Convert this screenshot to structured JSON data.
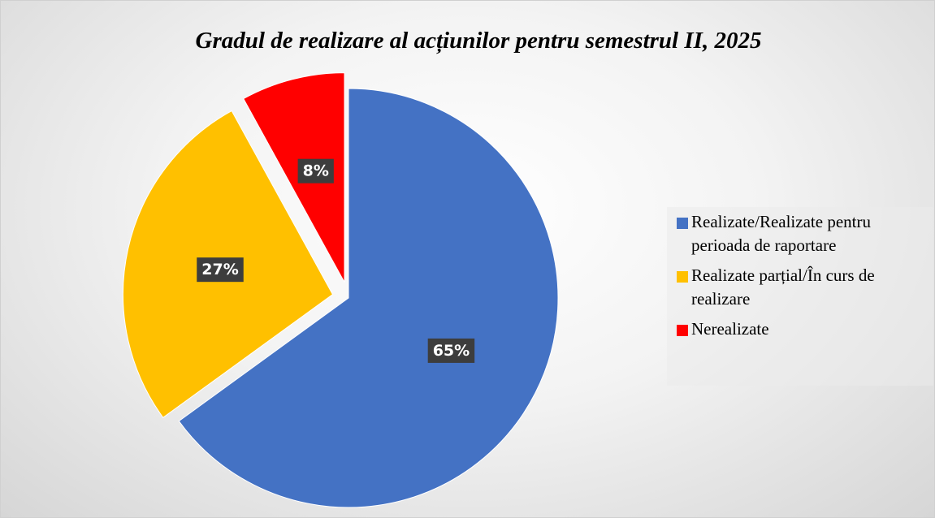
{
  "chart_data": {
    "type": "pie",
    "title": "Gradul de realizare al acțiunilor pentru semestrul II, 2025",
    "categories": [
      "Realizate/Realizate pentru perioada de raportare",
      "Realizate parțial/În curs de realizare",
      "Nerealizate"
    ],
    "values": [
      65,
      27,
      8
    ],
    "value_labels": [
      "65%",
      "27%",
      "8%"
    ],
    "colors": [
      "#4472c4",
      "#ffc000",
      "#ff0000"
    ],
    "legend": "right"
  }
}
